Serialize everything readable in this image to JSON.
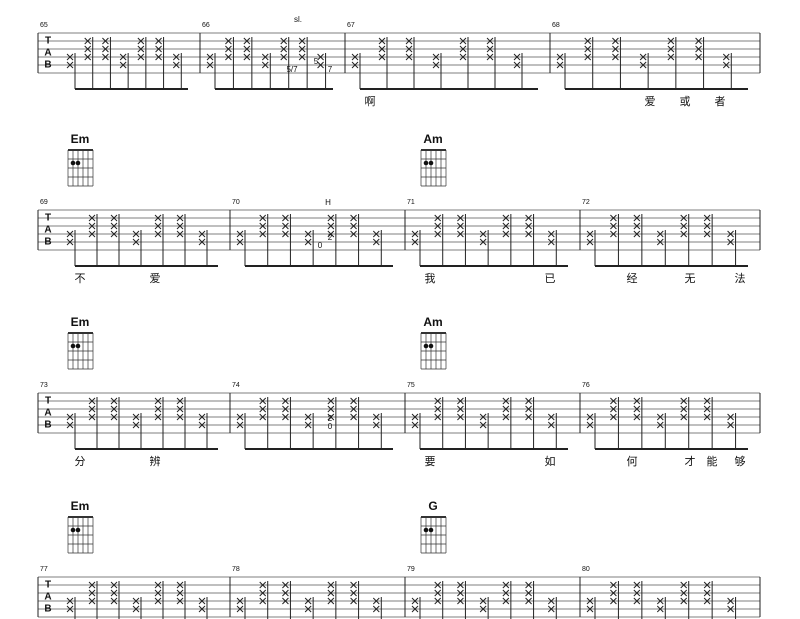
{
  "tab_clef": [
    "T",
    "A",
    "B"
  ],
  "systems": [
    {
      "measures": [
        "65",
        "66",
        "67",
        "68"
      ],
      "chords": [],
      "lyrics": [
        "啊",
        "爱",
        "或",
        "者"
      ],
      "annotations": [
        "sl.",
        "5/7",
        "5",
        "7"
      ]
    },
    {
      "measures": [
        "69",
        "70",
        "71",
        "72"
      ],
      "chords": [
        "Em",
        "Am"
      ],
      "lyrics": [
        "不",
        "爱",
        "我",
        "已",
        "经",
        "无",
        "法"
      ],
      "annotations": [
        "H",
        "0",
        "2"
      ]
    },
    {
      "measures": [
        "73",
        "74",
        "75",
        "76"
      ],
      "chords": [
        "Em",
        "Am"
      ],
      "lyrics": [
        "分",
        "辨",
        "要",
        "如",
        "何",
        "才",
        "能",
        "够"
      ],
      "annotations": [
        "0",
        "2"
      ]
    },
    {
      "measures": [
        "77",
        "78",
        "79",
        "80"
      ],
      "chords": [
        "Em",
        "G"
      ],
      "lyrics": [],
      "annotations": []
    }
  ]
}
